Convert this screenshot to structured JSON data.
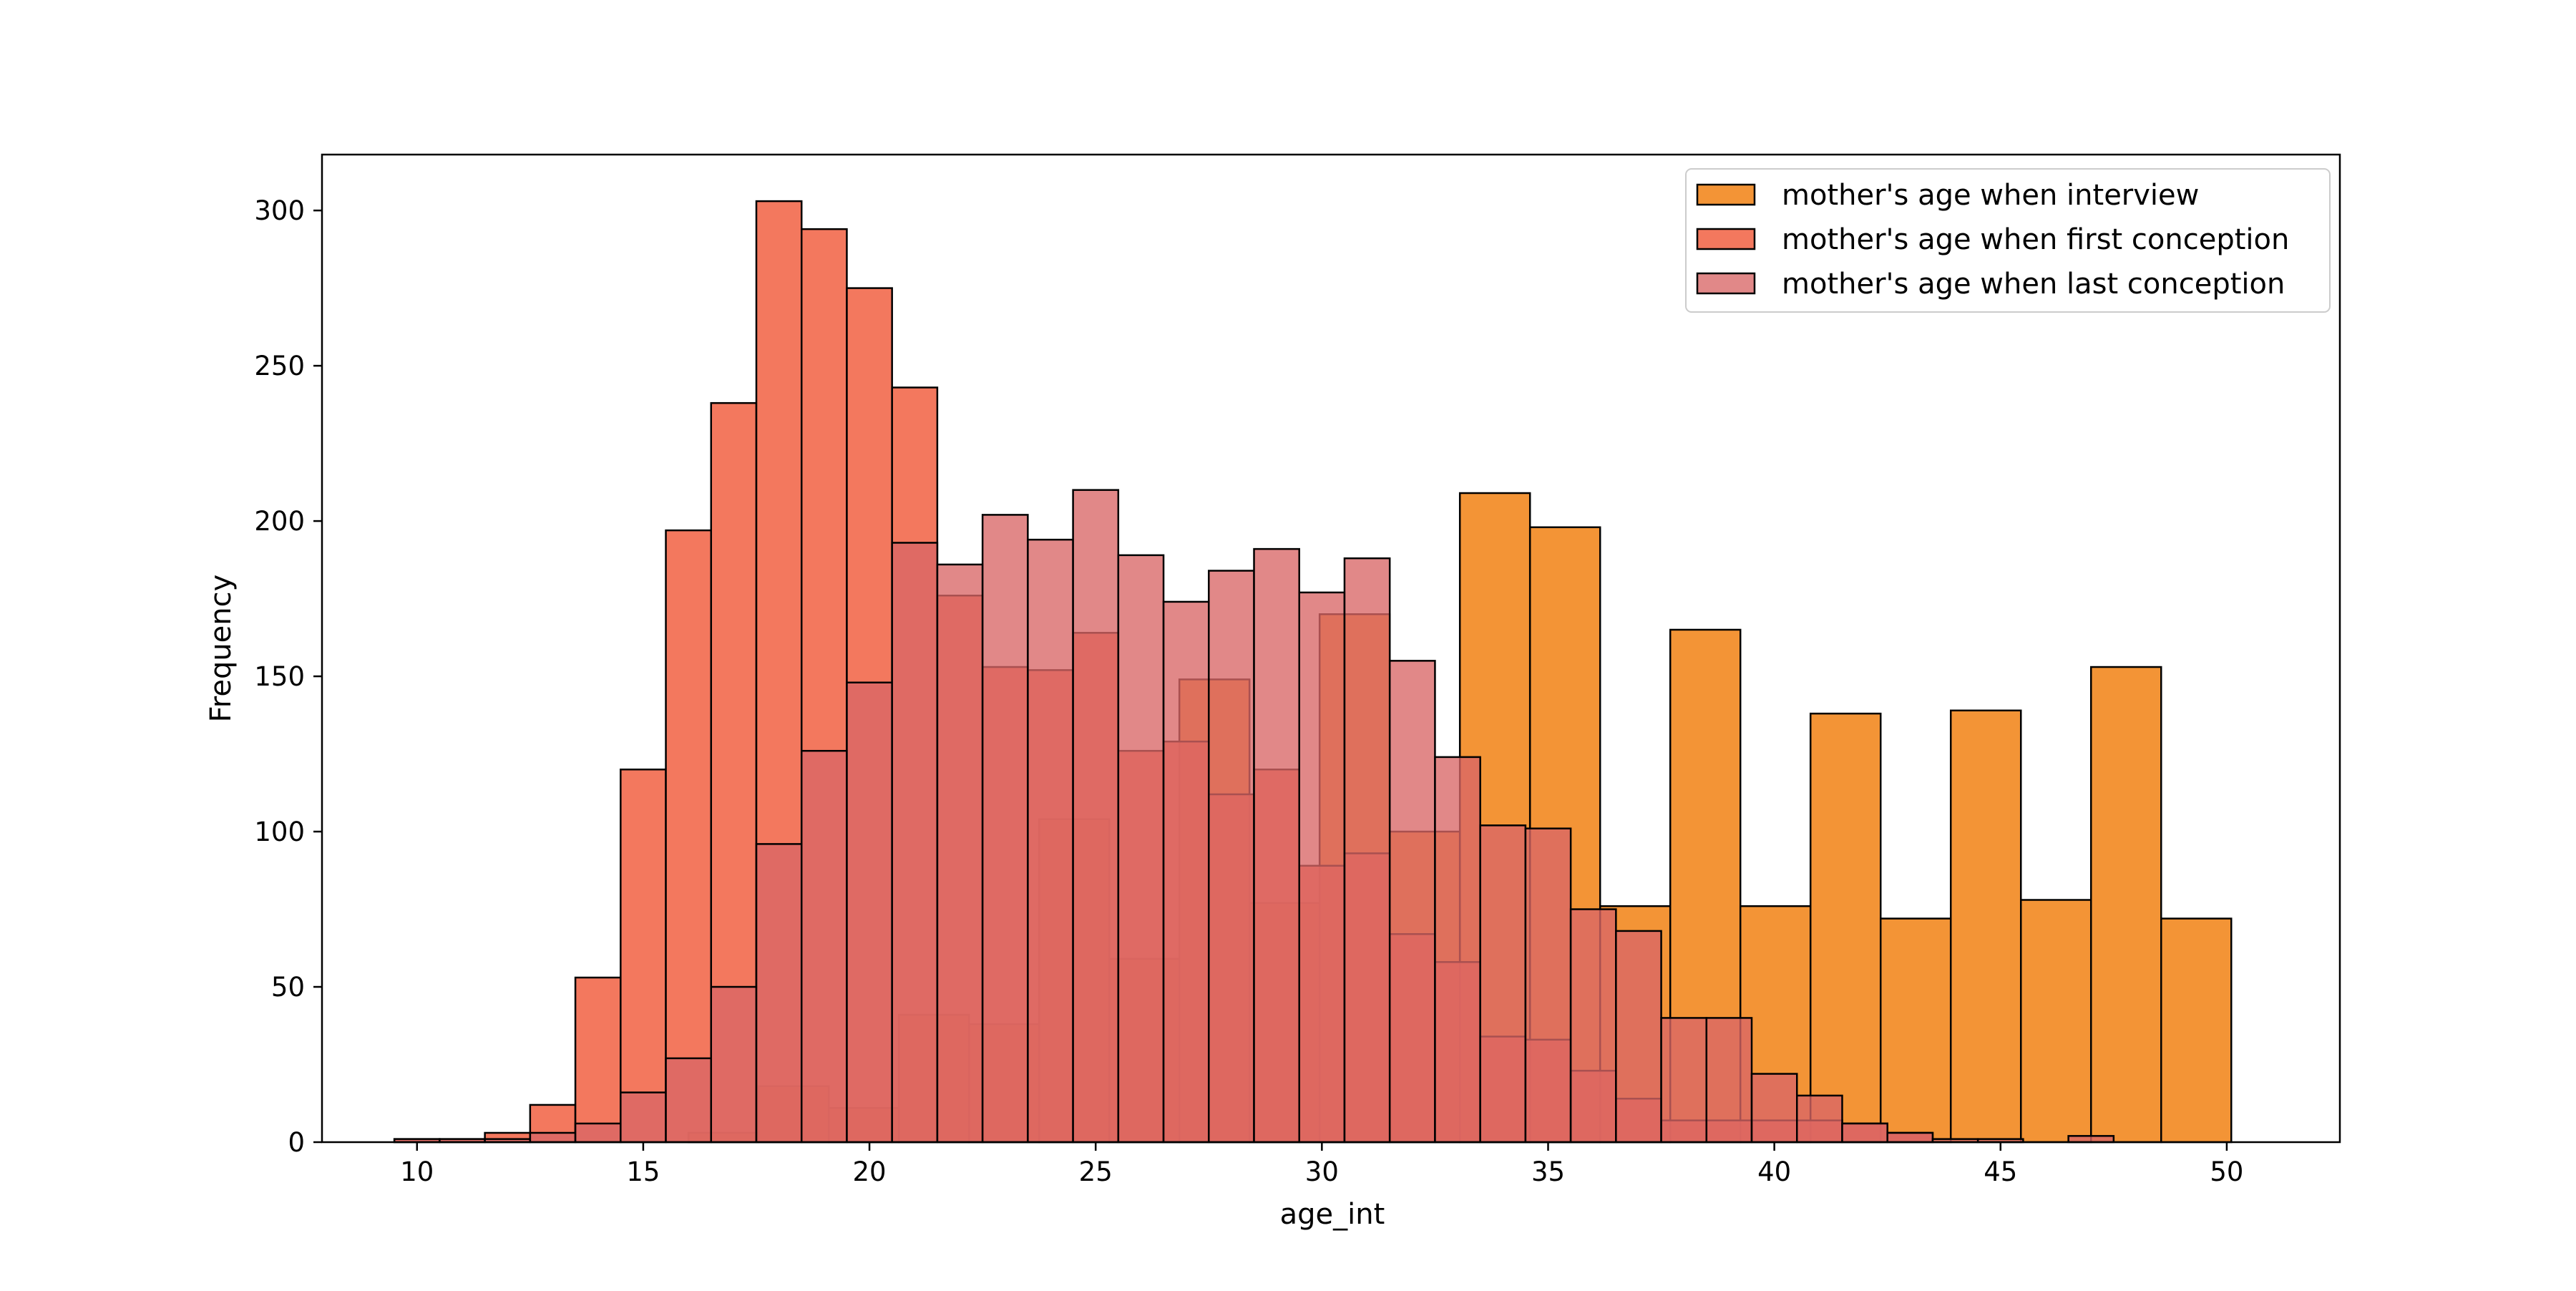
{
  "chart_data": {
    "type": "bar",
    "xlabel": "age_int",
    "ylabel": "Frequency",
    "xlim": [
      7.9,
      52.5
    ],
    "ylim": [
      0,
      318
    ],
    "xticks": [
      10,
      15,
      20,
      25,
      30,
      35,
      40,
      45,
      50
    ],
    "yticks": [
      0,
      50,
      100,
      150,
      200,
      250,
      300
    ],
    "legend_position": "top-right",
    "series": [
      {
        "name": "mother's age when interview",
        "color": "#F28E2B",
        "alpha": 0.95,
        "bins": [
          [
            16.0,
            17.55,
            3
          ],
          [
            17.55,
            19.1,
            18
          ],
          [
            19.1,
            20.65,
            11
          ],
          [
            20.65,
            22.2,
            41
          ],
          [
            22.2,
            23.75,
            38
          ],
          [
            23.75,
            25.3,
            104
          ],
          [
            25.3,
            26.85,
            59
          ],
          [
            26.85,
            28.4,
            149
          ],
          [
            28.4,
            29.95,
            77
          ],
          [
            29.95,
            31.5,
            170
          ],
          [
            31.5,
            33.05,
            100
          ],
          [
            33.05,
            34.6,
            209
          ],
          [
            34.6,
            36.15,
            198
          ],
          [
            36.15,
            37.7,
            76
          ],
          [
            37.7,
            39.25,
            165
          ],
          [
            39.25,
            40.8,
            76
          ],
          [
            40.8,
            42.35,
            138
          ],
          [
            42.35,
            43.9,
            72
          ],
          [
            43.9,
            45.45,
            139
          ],
          [
            45.45,
            47.0,
            78
          ],
          [
            47.0,
            48.55,
            153
          ],
          [
            48.55,
            50.1,
            72
          ]
        ]
      },
      {
        "name": "mother's age when first conception",
        "color": "#F2694C",
        "alpha": 0.9,
        "bins": [
          [
            9.5,
            10.5,
            1
          ],
          [
            10.5,
            11.5,
            1
          ],
          [
            11.5,
            12.5,
            3
          ],
          [
            12.5,
            13.5,
            12
          ],
          [
            13.5,
            14.5,
            53
          ],
          [
            14.5,
            15.5,
            120
          ],
          [
            15.5,
            16.5,
            197
          ],
          [
            16.5,
            17.5,
            238
          ],
          [
            17.5,
            18.5,
            303
          ],
          [
            18.5,
            19.5,
            294
          ],
          [
            19.5,
            20.5,
            275
          ],
          [
            20.5,
            21.5,
            243
          ],
          [
            21.5,
            22.5,
            176
          ],
          [
            22.5,
            23.5,
            153
          ],
          [
            23.5,
            24.5,
            152
          ],
          [
            24.5,
            25.5,
            164
          ],
          [
            25.5,
            26.5,
            126
          ],
          [
            26.5,
            27.5,
            129
          ],
          [
            27.5,
            28.5,
            112
          ],
          [
            28.5,
            29.5,
            120
          ],
          [
            29.5,
            30.5,
            89
          ],
          [
            30.5,
            31.5,
            93
          ],
          [
            31.5,
            32.5,
            67
          ],
          [
            32.5,
            33.5,
            58
          ],
          [
            33.5,
            34.5,
            34
          ],
          [
            34.5,
            35.5,
            33
          ],
          [
            35.5,
            36.5,
            23
          ],
          [
            36.5,
            37.5,
            14
          ],
          [
            37.5,
            38.5,
            7
          ],
          [
            38.5,
            39.5,
            7
          ],
          [
            39.5,
            40.5,
            7
          ],
          [
            40.5,
            41.5,
            7
          ],
          [
            41.5,
            42.5,
            6
          ],
          [
            42.5,
            43.5,
            3
          ]
        ]
      },
      {
        "name": "mother's age when last conception",
        "color": "#D96666",
        "alpha": 0.78,
        "bins": [
          [
            9.5,
            10.5,
            1
          ],
          [
            10.5,
            11.5,
            1
          ],
          [
            11.5,
            12.5,
            1
          ],
          [
            12.5,
            13.5,
            3
          ],
          [
            13.5,
            14.5,
            6
          ],
          [
            14.5,
            15.5,
            16
          ],
          [
            15.5,
            16.5,
            27
          ],
          [
            16.5,
            17.5,
            50
          ],
          [
            17.5,
            18.5,
            96
          ],
          [
            18.5,
            19.5,
            126
          ],
          [
            19.5,
            20.5,
            148
          ],
          [
            20.5,
            21.5,
            193
          ],
          [
            21.5,
            22.5,
            186
          ],
          [
            22.5,
            23.5,
            202
          ],
          [
            23.5,
            24.5,
            194
          ],
          [
            24.5,
            25.5,
            210
          ],
          [
            25.5,
            26.5,
            189
          ],
          [
            26.5,
            27.5,
            174
          ],
          [
            27.5,
            28.5,
            184
          ],
          [
            28.5,
            29.5,
            191
          ],
          [
            29.5,
            30.5,
            177
          ],
          [
            30.5,
            31.5,
            188
          ],
          [
            31.5,
            32.5,
            155
          ],
          [
            32.5,
            33.5,
            124
          ],
          [
            33.5,
            34.5,
            102
          ],
          [
            34.5,
            35.5,
            101
          ],
          [
            35.5,
            36.5,
            75
          ],
          [
            36.5,
            37.5,
            68
          ],
          [
            37.5,
            38.5,
            40
          ],
          [
            38.5,
            39.5,
            40
          ],
          [
            39.5,
            40.5,
            22
          ],
          [
            40.5,
            41.5,
            15
          ],
          [
            41.5,
            42.5,
            6
          ],
          [
            42.5,
            43.5,
            3
          ],
          [
            43.5,
            44.5,
            1
          ],
          [
            44.5,
            45.5,
            1
          ],
          [
            46.5,
            47.5,
            2
          ]
        ]
      }
    ]
  }
}
